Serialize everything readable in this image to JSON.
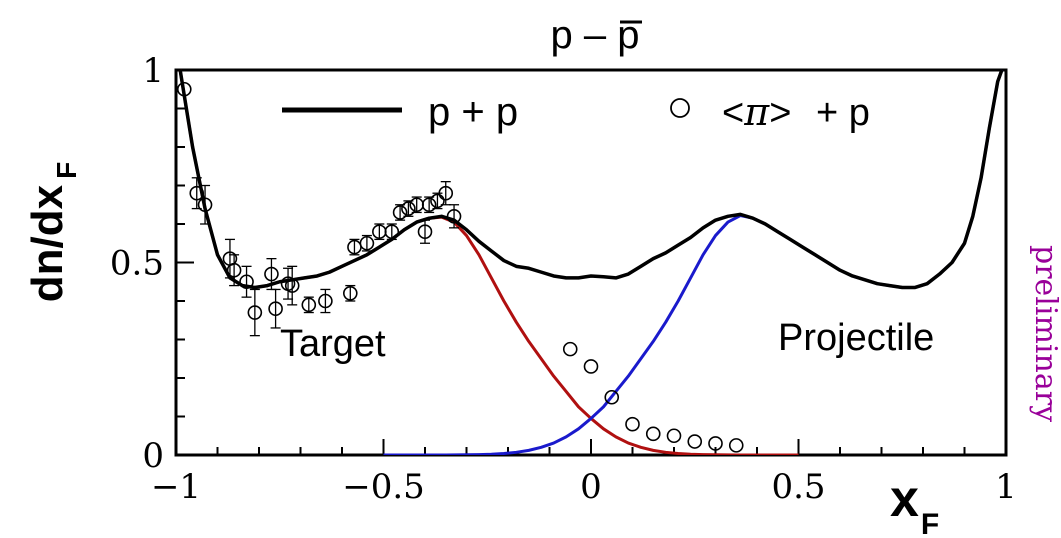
{
  "chart_data": {
    "type": "line",
    "title_parts": {
      "prefix": "p – ",
      "bar": "p"
    },
    "xlabel": "x",
    "xlabel_sub": "F",
    "ylabel": "dn/dx",
    "ylabel_sub": "F",
    "xlim": [
      -1,
      1
    ],
    "ylim": [
      0,
      1
    ],
    "x_ticks": [
      {
        "v": -1,
        "label": "−1"
      },
      {
        "v": -0.5,
        "label": "−0.5"
      },
      {
        "v": 0,
        "label": "0"
      },
      {
        "v": 0.5,
        "label": "0.5"
      },
      {
        "v": 1,
        "label": "1"
      }
    ],
    "y_ticks": [
      {
        "v": 0,
        "label": "0"
      },
      {
        "v": 0.5,
        "label": "0.5"
      },
      {
        "v": 1,
        "label": "1"
      }
    ],
    "grid": false,
    "legend": {
      "placement": "top",
      "line_label": "p + p",
      "marker_label_parts": [
        "<",
        "π",
        ">",
        " + p"
      ]
    },
    "annotations": {
      "target": "Target",
      "projectile": "Projectile",
      "preliminary": "preliminary"
    },
    "colors": {
      "total": "#000000",
      "target": "#b01010",
      "projectile": "#1a1acc",
      "preliminary": "#990099",
      "points": "#000000"
    },
    "series": [
      {
        "name": "p + p",
        "role": "total",
        "x": [
          -0.99,
          -0.96,
          -0.93,
          -0.9,
          -0.87,
          -0.84,
          -0.81,
          -0.78,
          -0.75,
          -0.72,
          -0.69,
          -0.66,
          -0.63,
          -0.6,
          -0.57,
          -0.54,
          -0.51,
          -0.48,
          -0.45,
          -0.42,
          -0.39,
          -0.36,
          -0.33,
          -0.3,
          -0.27,
          -0.24,
          -0.21,
          -0.18,
          -0.15,
          -0.12,
          -0.09,
          -0.06,
          -0.03,
          0,
          0.03,
          0.06,
          0.09,
          0.12,
          0.15,
          0.18,
          0.21,
          0.24,
          0.27,
          0.3,
          0.33,
          0.36,
          0.39,
          0.42,
          0.45,
          0.48,
          0.51,
          0.54,
          0.57,
          0.6,
          0.63,
          0.66,
          0.69,
          0.72,
          0.75,
          0.78,
          0.81,
          0.84,
          0.87,
          0.9,
          0.92,
          0.94,
          0.96,
          0.98,
          0.99
        ],
        "y": [
          1.0,
          0.8,
          0.64,
          0.52,
          0.46,
          0.44,
          0.435,
          0.44,
          0.45,
          0.455,
          0.46,
          0.465,
          0.475,
          0.49,
          0.505,
          0.52,
          0.54,
          0.56,
          0.585,
          0.605,
          0.615,
          0.62,
          0.61,
          0.585,
          0.555,
          0.53,
          0.505,
          0.49,
          0.485,
          0.475,
          0.465,
          0.46,
          0.46,
          0.465,
          0.463,
          0.46,
          0.47,
          0.49,
          0.51,
          0.525,
          0.545,
          0.565,
          0.59,
          0.61,
          0.62,
          0.625,
          0.615,
          0.6,
          0.58,
          0.56,
          0.54,
          0.52,
          0.5,
          0.48,
          0.465,
          0.455,
          0.445,
          0.44,
          0.435,
          0.435,
          0.445,
          0.47,
          0.5,
          0.55,
          0.62,
          0.72,
          0.85,
          0.97,
          1.0
        ]
      },
      {
        "name": "Target",
        "role": "target",
        "x": [
          -0.99,
          -0.96,
          -0.93,
          -0.9,
          -0.87,
          -0.84,
          -0.81,
          -0.78,
          -0.75,
          -0.72,
          -0.69,
          -0.66,
          -0.63,
          -0.6,
          -0.57,
          -0.54,
          -0.51,
          -0.48,
          -0.45,
          -0.42,
          -0.39,
          -0.36,
          -0.33,
          -0.3,
          -0.27,
          -0.24,
          -0.21,
          -0.18,
          -0.15,
          -0.12,
          -0.09,
          -0.06,
          -0.03,
          0,
          0.03,
          0.06,
          0.09,
          0.12,
          0.15,
          0.18,
          0.21,
          0.24,
          0.27,
          0.3,
          0.35,
          0.4,
          0.45,
          0.5
        ],
        "y": [
          1.0,
          0.8,
          0.64,
          0.52,
          0.46,
          0.44,
          0.435,
          0.44,
          0.45,
          0.455,
          0.46,
          0.465,
          0.475,
          0.49,
          0.505,
          0.52,
          0.54,
          0.56,
          0.585,
          0.605,
          0.615,
          0.618,
          0.605,
          0.57,
          0.52,
          0.46,
          0.4,
          0.345,
          0.295,
          0.25,
          0.205,
          0.165,
          0.125,
          0.095,
          0.068,
          0.047,
          0.031,
          0.02,
          0.012,
          0.007,
          0.004,
          0.002,
          0.001,
          0.0005,
          0,
          0,
          0,
          0
        ]
      },
      {
        "name": "Projectile",
        "role": "projectile",
        "x": [
          -0.5,
          -0.45,
          -0.4,
          -0.35,
          -0.3,
          -0.27,
          -0.24,
          -0.21,
          -0.18,
          -0.15,
          -0.12,
          -0.09,
          -0.06,
          -0.03,
          0,
          0.03,
          0.06,
          0.09,
          0.12,
          0.15,
          0.18,
          0.21,
          0.24,
          0.27,
          0.3,
          0.33,
          0.36,
          0.39,
          0.42,
          0.45,
          0.48,
          0.51,
          0.54,
          0.57,
          0.6,
          0.63,
          0.66,
          0.69,
          0.72,
          0.75,
          0.78,
          0.81,
          0.84,
          0.87,
          0.9,
          0.92,
          0.94,
          0.96,
          0.98,
          0.99
        ],
        "y": [
          0,
          0,
          0,
          0,
          0.0005,
          0.001,
          0.002,
          0.004,
          0.007,
          0.012,
          0.02,
          0.031,
          0.047,
          0.068,
          0.095,
          0.125,
          0.165,
          0.205,
          0.25,
          0.295,
          0.345,
          0.4,
          0.46,
          0.52,
          0.57,
          0.605,
          0.622,
          0.615,
          0.6,
          0.58,
          0.56,
          0.54,
          0.52,
          0.5,
          0.48,
          0.465,
          0.455,
          0.445,
          0.44,
          0.435,
          0.435,
          0.445,
          0.47,
          0.5,
          0.55,
          0.62,
          0.72,
          0.85,
          0.97,
          1.0
        ]
      },
      {
        "name": "<π> + p",
        "role": "points",
        "x": [
          -0.98,
          -0.95,
          -0.93,
          -0.87,
          -0.86,
          -0.83,
          -0.81,
          -0.77,
          -0.76,
          -0.73,
          -0.72,
          -0.68,
          -0.64,
          -0.58,
          -0.57,
          -0.54,
          -0.51,
          -0.48,
          -0.46,
          -0.44,
          -0.42,
          -0.4,
          -0.39,
          -0.37,
          -0.35,
          -0.33,
          -0.05,
          0,
          0.05,
          0.1,
          0.15,
          0.2,
          0.25,
          0.3,
          0.35
        ],
        "y": [
          0.95,
          0.68,
          0.65,
          0.51,
          0.48,
          0.45,
          0.37,
          0.47,
          0.38,
          0.445,
          0.44,
          0.39,
          0.4,
          0.42,
          0.54,
          0.55,
          0.58,
          0.58,
          0.63,
          0.64,
          0.65,
          0.58,
          0.65,
          0.66,
          0.68,
          0.62,
          0.275,
          0.23,
          0.15,
          0.08,
          0.055,
          0.05,
          0.035,
          0.03,
          0.025
        ],
        "err": [
          0,
          0.04,
          0.05,
          0.05,
          0.04,
          0.04,
          0.06,
          0.04,
          0.05,
          0.04,
          0.05,
          0.02,
          0.03,
          0.02,
          0.02,
          0.02,
          0.02,
          0.02,
          0.02,
          0.02,
          0.02,
          0.03,
          0.02,
          0.02,
          0.03,
          0.03,
          0,
          0,
          0,
          0,
          0,
          0,
          0,
          0,
          0
        ]
      }
    ]
  }
}
